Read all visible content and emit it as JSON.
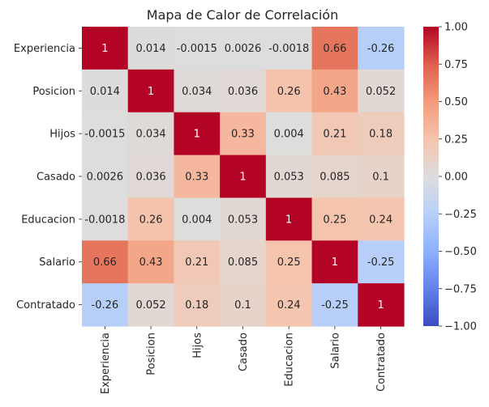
{
  "chart_data": {
    "type": "heatmap",
    "title": "Mapa de Calor de Correlación",
    "xlabel": "",
    "ylabel": "",
    "row_labels": [
      "Experiencia",
      "Posicion",
      "Hijos",
      "Casado",
      "Educacion",
      "Salario",
      "Contratado"
    ],
    "col_labels": [
      "Experiencia",
      "Posicion",
      "Hijos",
      "Casado",
      "Educacion",
      "Salario",
      "Contratado"
    ],
    "values": [
      [
        1,
        0.014,
        -0.0015,
        0.0026,
        -0.0018,
        0.66,
        -0.26
      ],
      [
        0.014,
        1,
        0.034,
        0.036,
        0.26,
        0.43,
        0.052
      ],
      [
        -0.0015,
        0.034,
        1,
        0.33,
        0.004,
        0.21,
        0.18
      ],
      [
        0.0026,
        0.036,
        0.33,
        1,
        0.053,
        0.085,
        0.1
      ],
      [
        -0.0018,
        0.26,
        0.004,
        0.053,
        1,
        0.25,
        0.24
      ],
      [
        0.66,
        0.43,
        0.21,
        0.085,
        0.25,
        1,
        -0.25
      ],
      [
        -0.26,
        0.052,
        0.18,
        0.1,
        0.24,
        -0.25,
        1
      ]
    ],
    "annotations": [
      [
        "1",
        "0.014",
        "-0.0015",
        "0.0026",
        "-0.0018",
        "0.66",
        "-0.26"
      ],
      [
        "0.014",
        "1",
        "0.034",
        "0.036",
        "0.26",
        "0.43",
        "0.052"
      ],
      [
        "-0.0015",
        "0.034",
        "1",
        "0.33",
        "0.004",
        "0.21",
        "0.18"
      ],
      [
        "0.0026",
        "0.036",
        "0.33",
        "1",
        "0.053",
        "0.085",
        "0.1"
      ],
      [
        "-0.0018",
        "0.26",
        "0.004",
        "0.053",
        "1",
        "0.25",
        "0.24"
      ],
      [
        "0.66",
        "0.43",
        "0.21",
        "0.085",
        "0.25",
        "1",
        "-0.25"
      ],
      [
        "-0.26",
        "0.052",
        "0.18",
        "0.1",
        "0.24",
        "-0.25",
        "1"
      ]
    ],
    "colorbar": {
      "vmin": -1.0,
      "vmax": 1.0,
      "ticks": [
        1.0,
        0.75,
        0.5,
        0.25,
        0.0,
        -0.25,
        -0.5,
        -0.75,
        -1.0
      ],
      "tick_labels": [
        "1.00",
        "0.75",
        "0.50",
        "0.25",
        "0.00",
        "−0.25",
        "−0.50",
        "−0.75",
        "−1.00"
      ],
      "colormap": "coolwarm",
      "color_low": "#3b4cc0",
      "color_mid": "#dddddd",
      "color_high": "#b40426"
    },
    "grid": false,
    "legend": "colorbar-right"
  }
}
